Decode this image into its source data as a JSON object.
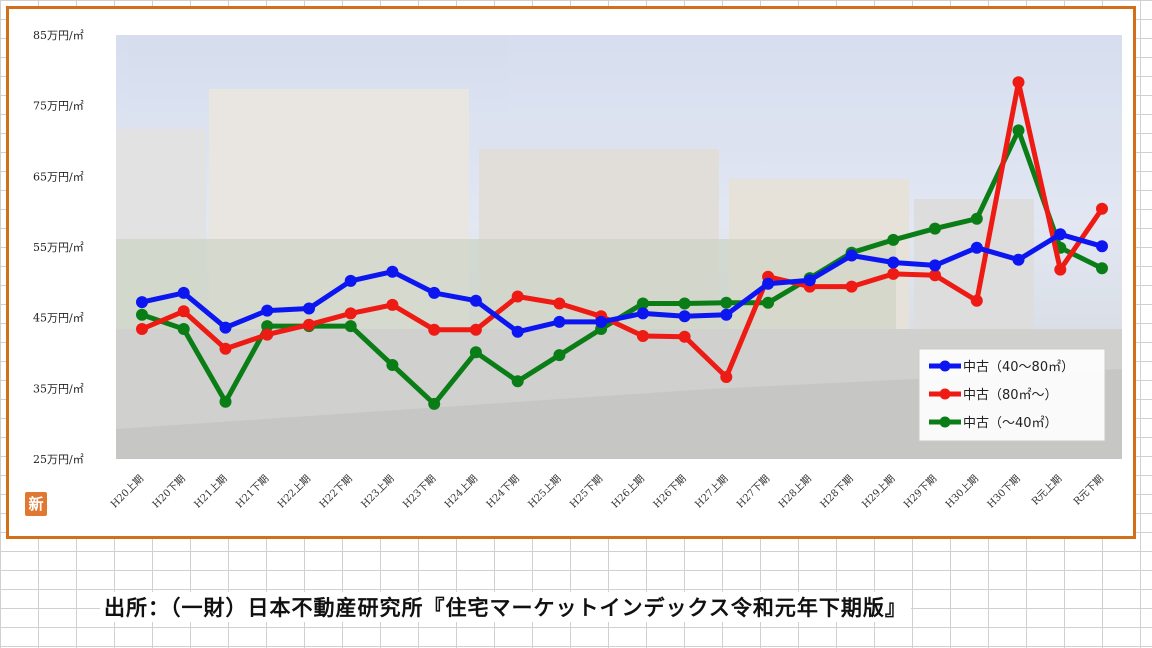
{
  "chart_data": {
    "type": "line",
    "title": "",
    "xlabel": "",
    "ylabel": "",
    "ylim": [
      25,
      85
    ],
    "yticks": [
      25,
      35,
      45,
      55,
      65,
      75,
      85
    ],
    "ytick_labels": [
      "25万円/㎡",
      "35万円/㎡",
      "45万円/㎡",
      "55万円/㎡",
      "65万円/㎡",
      "75万円/㎡",
      "85万円/㎡"
    ],
    "grid": false,
    "legend_position": "bottom-right",
    "categories": [
      "H20上期",
      "H20下期",
      "H21上期",
      "H21下期",
      "H22上期",
      "H22下期",
      "H23上期",
      "H23下期",
      "H24上期",
      "H24下期",
      "H25上期",
      "H25下期",
      "H26上期",
      "H26下期",
      "H27上期",
      "H27下期",
      "H28上期",
      "H28下期",
      "H29上期",
      "H29下期",
      "H30上期",
      "H30下期",
      "R元上期",
      "R元下期"
    ],
    "series": [
      {
        "name": "中古（40～80㎡）",
        "color": "#0b16f0",
        "values": [
          47.2,
          48.5,
          43.6,
          46.0,
          46.3,
          50.2,
          51.5,
          48.5,
          47.4,
          43.0,
          44.4,
          44.4,
          45.6,
          45.2,
          45.4,
          49.8,
          50.3,
          53.8,
          52.8,
          52.4,
          54.9,
          53.2,
          56.8,
          55.1
        ]
      },
      {
        "name": "中古（80㎡～）",
        "color": "#ee1a14",
        "values": [
          43.4,
          45.9,
          40.6,
          42.6,
          44.0,
          45.6,
          46.8,
          43.3,
          43.3,
          48.0,
          47.0,
          45.2,
          42.4,
          42.3,
          36.6,
          50.8,
          49.4,
          49.4,
          51.2,
          51.0,
          47.4,
          78.3,
          51.8,
          60.4
        ]
      },
      {
        "name": "中古（～40㎡）",
        "color": "#0b7d16",
        "values": [
          45.4,
          43.4,
          33.1,
          43.8,
          43.8,
          43.8,
          38.3,
          32.8,
          40.1,
          36.0,
          39.7,
          43.4,
          47.0,
          47.0,
          47.1,
          47.1,
          50.6,
          54.2,
          56.0,
          57.6,
          59.0,
          71.5,
          54.9,
          52.0
        ]
      }
    ]
  },
  "source_note": "出所：（一財）日本不動産研究所『住宅マーケットインデックス令和元年下期版』",
  "badge_char": "新",
  "colors": {
    "frame": "#d36f1a",
    "badge": "#e07832"
  }
}
